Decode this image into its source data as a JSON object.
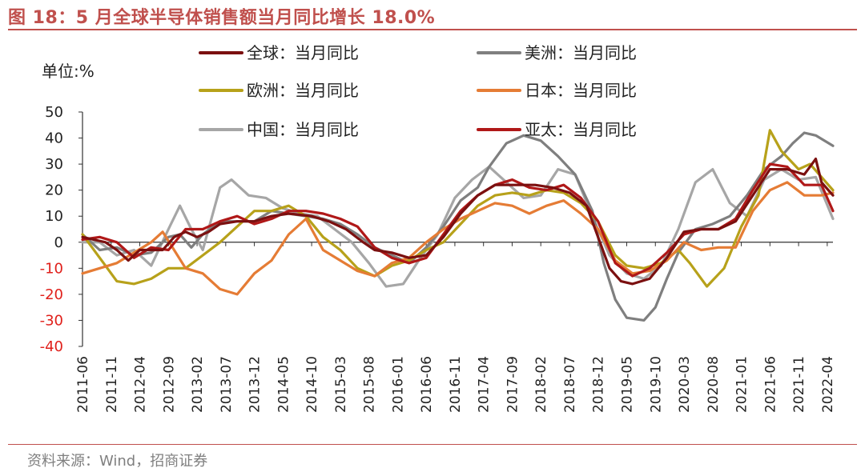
{
  "figure": {
    "title": "图 18：5 月全球半导体销售额当月同比增长 18.0%",
    "source": "资料来源：Wind，招商证券",
    "unit_label": "单位:%"
  },
  "colors": {
    "title": "#c0504d",
    "negative_tick": "#e0201b",
    "positive_tick": "#222222"
  },
  "chart_data": {
    "type": "line",
    "title": "5 月全球半导体销售额当月同比增长 18.0%",
    "ylabel": "单位:%",
    "ylim": [
      -40,
      50
    ],
    "yticks": [
      50,
      40,
      30,
      20,
      10,
      0,
      -10,
      -20,
      -30,
      -40
    ],
    "xrange": [
      "2011-06",
      "2022-05"
    ],
    "xticks": [
      "2011-06",
      "2011-11",
      "2012-04",
      "2012-09",
      "2013-02",
      "2013-07",
      "2013-12",
      "2014-05",
      "2014-10",
      "2015-03",
      "2015-08",
      "2016-01",
      "2016-06",
      "2016-11",
      "2017-04",
      "2017-09",
      "2018-02",
      "2018-07",
      "2018-12",
      "2019-05",
      "2019-10",
      "2020-03",
      "2020-08",
      "2021-01",
      "2021-06",
      "2021-11",
      "2022-04"
    ],
    "legend_position": "top",
    "series": [
      {
        "name": "全球：当月同比",
        "color": "#7b1010",
        "width": 3.2,
        "points": [
          [
            "2011-06",
            2
          ],
          [
            "2011-10",
            0
          ],
          [
            "2011-12",
            -3
          ],
          [
            "2012-02",
            -7
          ],
          [
            "2012-04",
            -3
          ],
          [
            "2012-06",
            -3
          ],
          [
            "2012-08",
            -3
          ],
          [
            "2012-10",
            2
          ],
          [
            "2012-12",
            4
          ],
          [
            "2013-02",
            2
          ],
          [
            "2013-04",
            4
          ],
          [
            "2013-06",
            7
          ],
          [
            "2013-09",
            8
          ],
          [
            "2013-12",
            8
          ],
          [
            "2014-03",
            10
          ],
          [
            "2014-06",
            11
          ],
          [
            "2014-10",
            10
          ],
          [
            "2015-01",
            8
          ],
          [
            "2015-04",
            5
          ],
          [
            "2015-07",
            0
          ],
          [
            "2015-09",
            -3
          ],
          [
            "2015-12",
            -4
          ],
          [
            "2016-03",
            -6
          ],
          [
            "2016-06",
            -5
          ],
          [
            "2016-09",
            2
          ],
          [
            "2016-12",
            11
          ],
          [
            "2017-03",
            18
          ],
          [
            "2017-06",
            22
          ],
          [
            "2017-09",
            22
          ],
          [
            "2018-01",
            22
          ],
          [
            "2018-04",
            21
          ],
          [
            "2018-07",
            19
          ],
          [
            "2018-10",
            14
          ],
          [
            "2018-12",
            2
          ],
          [
            "2019-02",
            -10
          ],
          [
            "2019-04",
            -15
          ],
          [
            "2019-06",
            -16
          ],
          [
            "2019-09",
            -14
          ],
          [
            "2019-12",
            -6
          ],
          [
            "2020-03",
            4
          ],
          [
            "2020-06",
            5
          ],
          [
            "2020-09",
            5
          ],
          [
            "2020-12",
            8
          ],
          [
            "2021-03",
            18
          ],
          [
            "2021-06",
            28
          ],
          [
            "2021-09",
            28
          ],
          [
            "2021-12",
            26
          ],
          [
            "2022-02",
            32
          ],
          [
            "2022-03",
            23
          ],
          [
            "2022-05",
            18
          ]
        ]
      },
      {
        "name": "美洲：当月同比",
        "color": "#7f7f7f",
        "width": 3.2,
        "points": [
          [
            "2011-06",
            3
          ],
          [
            "2011-09",
            -3
          ],
          [
            "2011-12",
            -2
          ],
          [
            "2012-03",
            -5
          ],
          [
            "2012-06",
            -4
          ],
          [
            "2012-09",
            2
          ],
          [
            "2012-11",
            3
          ],
          [
            "2013-01",
            -2
          ],
          [
            "2013-03",
            3
          ],
          [
            "2013-06",
            8
          ],
          [
            "2013-09",
            8
          ],
          [
            "2013-12",
            8
          ],
          [
            "2014-03",
            12
          ],
          [
            "2014-06",
            11
          ],
          [
            "2014-09",
            10
          ],
          [
            "2014-12",
            9
          ],
          [
            "2015-03",
            7
          ],
          [
            "2015-06",
            3
          ],
          [
            "2015-09",
            -2
          ],
          [
            "2015-12",
            -5
          ],
          [
            "2016-03",
            -8
          ],
          [
            "2016-06",
            -2
          ],
          [
            "2016-09",
            6
          ],
          [
            "2016-12",
            16
          ],
          [
            "2017-03",
            21
          ],
          [
            "2017-05",
            29
          ],
          [
            "2017-08",
            38
          ],
          [
            "2017-11",
            41
          ],
          [
            "2018-02",
            39
          ],
          [
            "2018-05",
            33
          ],
          [
            "2018-08",
            26
          ],
          [
            "2018-11",
            12
          ],
          [
            "2019-01",
            -8
          ],
          [
            "2019-03",
            -22
          ],
          [
            "2019-05",
            -29
          ],
          [
            "2019-08",
            -30
          ],
          [
            "2019-10",
            -25
          ],
          [
            "2019-12",
            -14
          ],
          [
            "2020-02",
            -4
          ],
          [
            "2020-05",
            5
          ],
          [
            "2020-08",
            7
          ],
          [
            "2020-11",
            10
          ],
          [
            "2021-02",
            18
          ],
          [
            "2021-05",
            28
          ],
          [
            "2021-08",
            33
          ],
          [
            "2021-10",
            38
          ],
          [
            "2021-12",
            42
          ],
          [
            "2022-02",
            41
          ],
          [
            "2022-05",
            37
          ]
        ]
      },
      {
        "name": "欧洲：当月同比",
        "color": "#b7a11a",
        "width": 3.2,
        "points": [
          [
            "2011-06",
            3
          ],
          [
            "2011-09",
            -6
          ],
          [
            "2011-12",
            -15
          ],
          [
            "2012-03",
            -16
          ],
          [
            "2012-06",
            -14
          ],
          [
            "2012-09",
            -10
          ],
          [
            "2012-12",
            -10
          ],
          [
            "2013-03",
            -5
          ],
          [
            "2013-06",
            0
          ],
          [
            "2013-09",
            6
          ],
          [
            "2013-12",
            12
          ],
          [
            "2014-03",
            12
          ],
          [
            "2014-06",
            14
          ],
          [
            "2014-09",
            10
          ],
          [
            "2014-12",
            2
          ],
          [
            "2015-03",
            -3
          ],
          [
            "2015-06",
            -10
          ],
          [
            "2015-09",
            -13
          ],
          [
            "2015-12",
            -9
          ],
          [
            "2016-03",
            -7
          ],
          [
            "2016-06",
            -3
          ],
          [
            "2016-09",
            0
          ],
          [
            "2016-12",
            7
          ],
          [
            "2017-03",
            14
          ],
          [
            "2017-06",
            18
          ],
          [
            "2017-09",
            19
          ],
          [
            "2017-12",
            18
          ],
          [
            "2018-03",
            20
          ],
          [
            "2018-06",
            19
          ],
          [
            "2018-09",
            15
          ],
          [
            "2018-12",
            8
          ],
          [
            "2019-03",
            -5
          ],
          [
            "2019-05",
            -9
          ],
          [
            "2019-08",
            -10
          ],
          [
            "2019-11",
            -8
          ],
          [
            "2020-02",
            -3
          ],
          [
            "2020-04",
            -8
          ],
          [
            "2020-07",
            -17
          ],
          [
            "2020-10",
            -10
          ],
          [
            "2021-01",
            6
          ],
          [
            "2021-04",
            18
          ],
          [
            "2021-06",
            43
          ],
          [
            "2021-08",
            35
          ],
          [
            "2021-11",
            28
          ],
          [
            "2022-01",
            30
          ],
          [
            "2022-05",
            20
          ]
        ]
      },
      {
        "name": "日本：当月同比",
        "color": "#e57c35",
        "width": 3.2,
        "points": [
          [
            "2011-06",
            -12
          ],
          [
            "2011-09",
            -10
          ],
          [
            "2011-12",
            -8
          ],
          [
            "2012-03",
            -4
          ],
          [
            "2012-06",
            0
          ],
          [
            "2012-08",
            4
          ],
          [
            "2012-10",
            -3
          ],
          [
            "2012-12",
            -10
          ],
          [
            "2013-03",
            -12
          ],
          [
            "2013-06",
            -18
          ],
          [
            "2013-09",
            -20
          ],
          [
            "2013-12",
            -12
          ],
          [
            "2014-03",
            -7
          ],
          [
            "2014-06",
            3
          ],
          [
            "2014-09",
            9
          ],
          [
            "2014-12",
            -3
          ],
          [
            "2015-03",
            -7
          ],
          [
            "2015-06",
            -11
          ],
          [
            "2015-09",
            -13
          ],
          [
            "2015-12",
            -8
          ],
          [
            "2016-03",
            -6
          ],
          [
            "2016-06",
            0
          ],
          [
            "2016-09",
            5
          ],
          [
            "2016-12",
            9
          ],
          [
            "2017-03",
            12
          ],
          [
            "2017-06",
            15
          ],
          [
            "2017-09",
            14
          ],
          [
            "2017-12",
            11
          ],
          [
            "2018-03",
            14
          ],
          [
            "2018-06",
            16
          ],
          [
            "2018-09",
            11
          ],
          [
            "2018-12",
            5
          ],
          [
            "2019-03",
            -7
          ],
          [
            "2019-06",
            -12
          ],
          [
            "2019-09",
            -11
          ],
          [
            "2019-12",
            -7
          ],
          [
            "2020-03",
            0
          ],
          [
            "2020-06",
            -3
          ],
          [
            "2020-09",
            -2
          ],
          [
            "2020-12",
            -2
          ],
          [
            "2021-03",
            12
          ],
          [
            "2021-06",
            20
          ],
          [
            "2021-09",
            23
          ],
          [
            "2021-12",
            18
          ],
          [
            "2022-03",
            18
          ],
          [
            "2022-05",
            19
          ]
        ]
      },
      {
        "name": "中国：当月同比",
        "color": "#a6a6a6",
        "width": 3.2,
        "points": [
          [
            "2011-06",
            0
          ],
          [
            "2011-09",
            0
          ],
          [
            "2011-12",
            -5
          ],
          [
            "2012-03",
            -3
          ],
          [
            "2012-06",
            -9
          ],
          [
            "2012-09",
            5
          ],
          [
            "2012-11",
            14
          ],
          [
            "2013-01",
            5
          ],
          [
            "2013-03",
            -3
          ],
          [
            "2013-06",
            21
          ],
          [
            "2013-08",
            24
          ],
          [
            "2013-11",
            18
          ],
          [
            "2014-02",
            17
          ],
          [
            "2014-05",
            13
          ],
          [
            "2014-08",
            11
          ],
          [
            "2014-11",
            10
          ],
          [
            "2015-02",
            5
          ],
          [
            "2015-05",
            0
          ],
          [
            "2015-08",
            -8
          ],
          [
            "2015-11",
            -17
          ],
          [
            "2016-02",
            -16
          ],
          [
            "2016-05",
            -6
          ],
          [
            "2016-08",
            3
          ],
          [
            "2016-11",
            17
          ],
          [
            "2017-02",
            24
          ],
          [
            "2017-05",
            29
          ],
          [
            "2017-08",
            23
          ],
          [
            "2017-11",
            17
          ],
          [
            "2018-02",
            18
          ],
          [
            "2018-05",
            28
          ],
          [
            "2018-08",
            26
          ],
          [
            "2018-11",
            10
          ],
          [
            "2019-02",
            -5
          ],
          [
            "2019-05",
            -12
          ],
          [
            "2019-08",
            -14
          ],
          [
            "2019-11",
            -9
          ],
          [
            "2020-02",
            5
          ],
          [
            "2020-05",
            23
          ],
          [
            "2020-08",
            28
          ],
          [
            "2020-11",
            15
          ],
          [
            "2021-02",
            10
          ],
          [
            "2021-05",
            24
          ],
          [
            "2021-08",
            28
          ],
          [
            "2021-11",
            24
          ],
          [
            "2022-02",
            25
          ],
          [
            "2022-05",
            9
          ]
        ]
      },
      {
        "name": "亚太：当月同比",
        "color": "#b01818",
        "width": 3.2,
        "points": [
          [
            "2011-06",
            1
          ],
          [
            "2011-09",
            2
          ],
          [
            "2011-12",
            0
          ],
          [
            "2012-03",
            -6
          ],
          [
            "2012-06",
            -2
          ],
          [
            "2012-09",
            -3
          ],
          [
            "2012-12",
            5
          ],
          [
            "2013-03",
            5
          ],
          [
            "2013-06",
            8
          ],
          [
            "2013-09",
            10
          ],
          [
            "2013-12",
            7
          ],
          [
            "2014-03",
            9
          ],
          [
            "2014-06",
            12
          ],
          [
            "2014-09",
            12
          ],
          [
            "2014-12",
            11
          ],
          [
            "2015-03",
            9
          ],
          [
            "2015-06",
            6
          ],
          [
            "2015-09",
            -2
          ],
          [
            "2015-12",
            -6
          ],
          [
            "2016-03",
            -8
          ],
          [
            "2016-06",
            -6
          ],
          [
            "2016-09",
            3
          ],
          [
            "2016-12",
            12
          ],
          [
            "2017-03",
            18
          ],
          [
            "2017-06",
            22
          ],
          [
            "2017-09",
            24
          ],
          [
            "2017-12",
            21
          ],
          [
            "2018-03",
            20
          ],
          [
            "2018-06",
            22
          ],
          [
            "2018-09",
            17
          ],
          [
            "2018-12",
            8
          ],
          [
            "2019-03",
            -8
          ],
          [
            "2019-06",
            -13
          ],
          [
            "2019-09",
            -10
          ],
          [
            "2019-12",
            -4
          ],
          [
            "2020-03",
            3
          ],
          [
            "2020-06",
            5
          ],
          [
            "2020-09",
            5
          ],
          [
            "2020-12",
            9
          ],
          [
            "2021-03",
            20
          ],
          [
            "2021-06",
            30
          ],
          [
            "2021-09",
            29
          ],
          [
            "2021-12",
            22
          ],
          [
            "2022-03",
            22
          ],
          [
            "2022-05",
            12
          ]
        ]
      }
    ]
  }
}
